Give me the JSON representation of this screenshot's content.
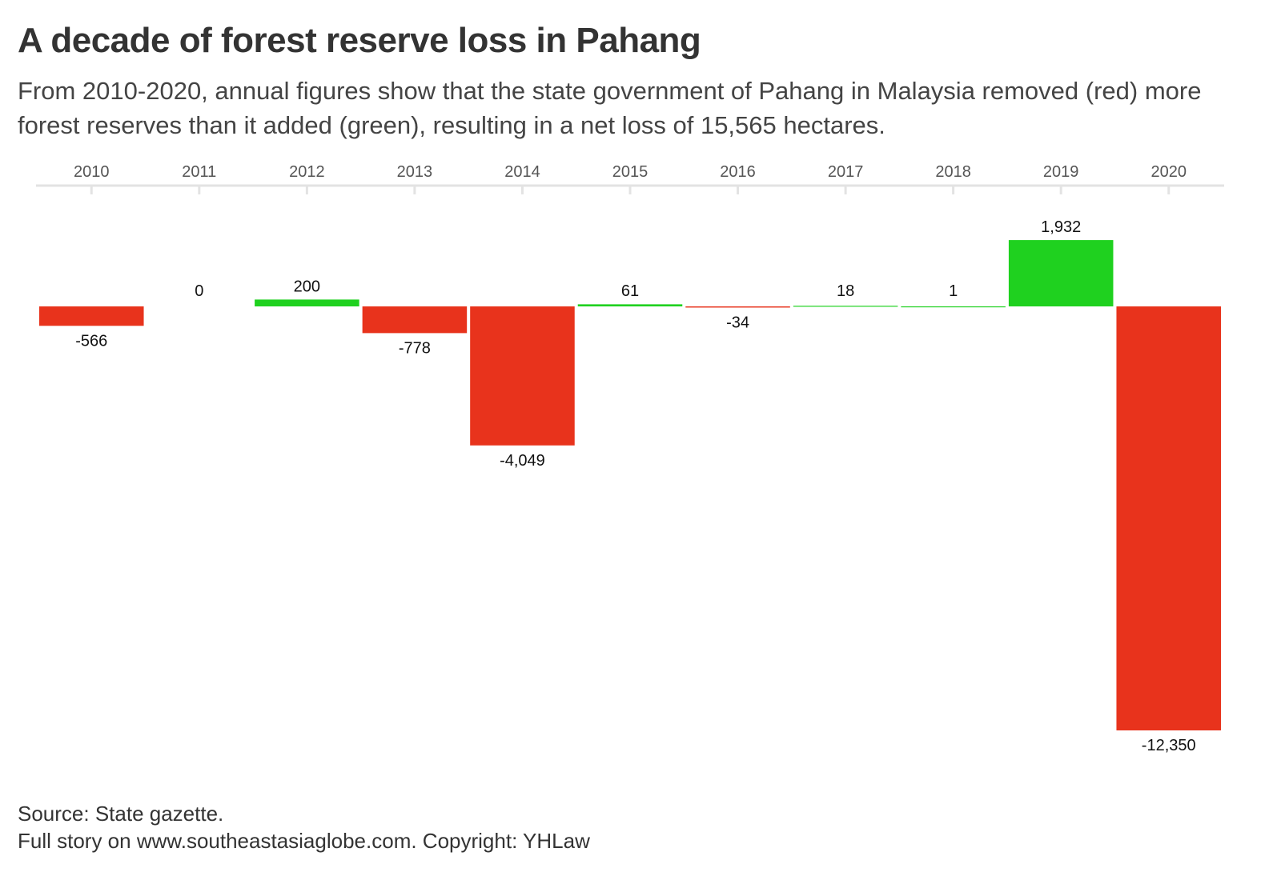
{
  "title": "A decade of forest reserve loss in Pahang",
  "subtitle": "From 2010-2020, annual figures show that the state government of Pahang in Malaysia removed (red) more forest reserves than it added (green), resulting in a net loss of 15,565 hectares.",
  "footer": {
    "source": "Source: State gazette.",
    "credit": "Full story on www.southeastasiaglobe.com. Copyright: YHLaw"
  },
  "colors": {
    "positive": "#1fd11f",
    "negative": "#e8331c",
    "axis": "#e3e3e3",
    "text": "#333333"
  },
  "chart_data": {
    "type": "bar",
    "categories": [
      "2010",
      "2011",
      "2012",
      "2013",
      "2014",
      "2015",
      "2016",
      "2017",
      "2018",
      "2019",
      "2020"
    ],
    "values": [
      -566,
      0,
      200,
      -778,
      -4049,
      61,
      -34,
      18,
      1,
      1932,
      -12350
    ],
    "labels": [
      "-566",
      "0",
      "200",
      "-778",
      "-4,049",
      "61",
      "-34",
      "18",
      "1",
      "1,932",
      "-12,350"
    ],
    "xlabel": "",
    "ylabel": "",
    "ylim": [
      -12350,
      1932
    ],
    "x_axis_position": "top",
    "grid": false,
    "legend": "none"
  }
}
